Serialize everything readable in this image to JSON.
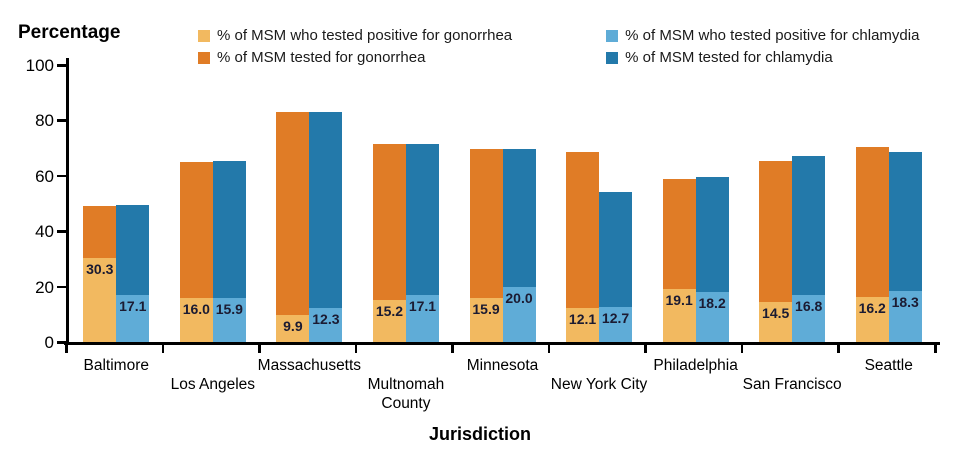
{
  "y_axis": {
    "title": "Percentage",
    "ticks": [
      0,
      20,
      40,
      60,
      80,
      100
    ]
  },
  "x_axis": {
    "title": "Jurisdiction"
  },
  "colors": {
    "gonorrhea_positive": "#F2B960",
    "gonorrhea_tested": "#E07C26",
    "chlamydia_positive": "#5FACD7",
    "chlamydia_tested": "#2379AA",
    "value_label_text": "#1B1B32",
    "axis": "#000000"
  },
  "legend": {
    "columns": [
      [
        {
          "label": "% of MSM who tested positive for gonorrhea",
          "color_key": "gonorrhea_positive"
        },
        {
          "label": "% of MSM tested for gonorrhea",
          "color_key": "gonorrhea_tested"
        }
      ],
      [
        {
          "label": "% of MSM who tested positive for chlamydia",
          "color_key": "chlamydia_positive"
        },
        {
          "label": "% of MSM tested for chlamydia",
          "color_key": "chlamydia_tested"
        }
      ]
    ]
  },
  "chart_data": {
    "type": "bar",
    "title": "",
    "xlabel": "Jurisdiction",
    "ylabel": "Percentage",
    "ylim": [
      0,
      100
    ],
    "yticks": [
      0,
      20,
      40,
      60,
      80,
      100
    ],
    "grid": false,
    "legend_position": "top",
    "categories": [
      "Baltimore",
      "Los Angeles",
      "Massachusetts",
      "Multnomah\nCounty",
      "Minnesota",
      "New York City",
      "Philadelphia",
      "San Francisco",
      "Seattle"
    ],
    "series": [
      {
        "name": "% of MSM tested for gonorrhea",
        "role": "gonorrhea-tested",
        "color_key": "gonorrhea_tested",
        "labeled": false,
        "values": [
          49.0,
          65.0,
          83.0,
          71.5,
          69.5,
          68.5,
          59.0,
          65.5,
          70.5
        ]
      },
      {
        "name": "% of MSM who tested positive for gonorrhea",
        "role": "gonorrhea-positive",
        "color_key": "gonorrhea_positive",
        "labeled": true,
        "values": [
          30.3,
          16.0,
          9.9,
          15.2,
          15.9,
          12.1,
          19.1,
          14.5,
          16.2
        ]
      },
      {
        "name": "% of MSM tested for chlamydia",
        "role": "chlamydia-tested",
        "color_key": "chlamydia_tested",
        "labeled": false,
        "values": [
          49.5,
          65.5,
          83.0,
          71.5,
          69.5,
          54.0,
          59.5,
          67.0,
          68.5
        ]
      },
      {
        "name": "% of MSM who tested positive for chlamydia",
        "role": "chlamydia-positive",
        "color_key": "chlamydia_positive",
        "labeled": true,
        "values": [
          17.1,
          15.9,
          12.3,
          17.1,
          20.0,
          12.7,
          18.2,
          16.8,
          18.3
        ]
      }
    ]
  }
}
